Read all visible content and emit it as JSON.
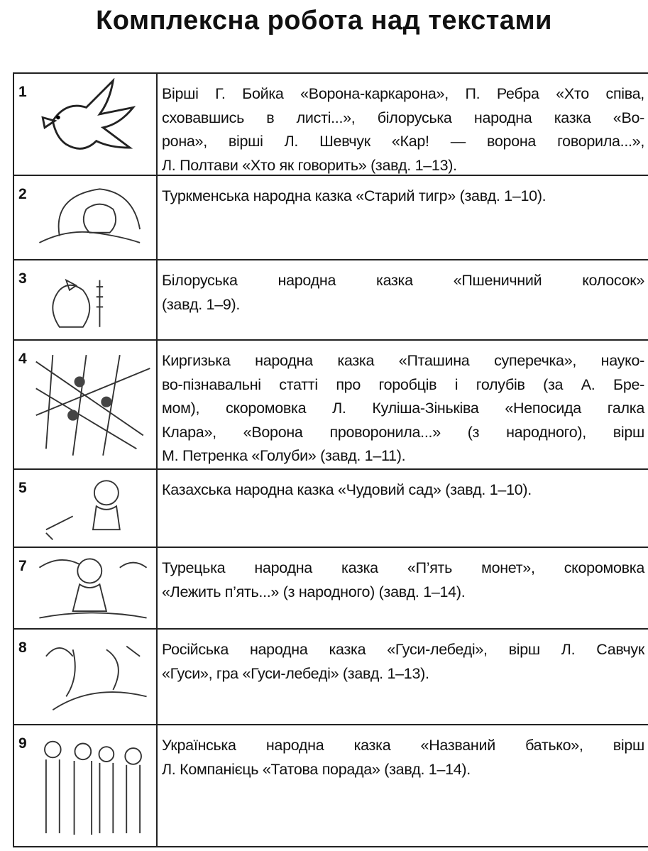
{
  "title": "Комплексна робота над текстами",
  "rows": [
    {
      "num": "1",
      "icon": "crow-illustration",
      "lines": [
        "Вірші Г. Бойка «Ворона-каркарона», П. Ребра «Хто співа,",
        "сховавшись в листі...», білоруська народна казка «Во-",
        "рона», вірші Л. Шевчук «Кар! — ворона говорила...»,",
        "Л. Полтави «Хто як говорить» (завд. 1–13)."
      ]
    },
    {
      "num": "2",
      "icon": "tiger-illustration",
      "lines": [
        "Туркменська народна казка «Старий тигр» (завд. 1–10)."
      ]
    },
    {
      "num": "3",
      "icon": "hen-with-wheat-illustration",
      "lines": [
        "Білоруська народна казка «Пшеничний колосок»",
        "(завд. 1–9)."
      ]
    },
    {
      "num": "4",
      "icon": "birds-in-net-illustration",
      "lines": [
        "Киргизька народна казка «Пташина суперечка», науко-",
        "во-пізнавальні статті про горобців і голубів (за А. Бре-",
        "мом), скоромовка Л. Куліша-Зіньківа «Непосида галка",
        "Клара», «Ворона проворонила...» (з народного), вірш",
        "М. Петренка «Голуби» (завд. 1–11)."
      ]
    },
    {
      "num": "5",
      "icon": "girl-watering-illustration",
      "lines": [
        "Казахська народна казка «Чудовий сад» (завд. 1–10)."
      ]
    },
    {
      "num": "7",
      "icon": "boy-picking-coins-illustration",
      "lines": [
        "Турецька народна казка «П’ять монет», скоромовка",
        "«Лежить п’ять...» (з народного) (завд. 1–14)."
      ]
    },
    {
      "num": "8",
      "icon": "geese-illustration",
      "lines": [
        "Російська народна казка «Гуси-лебеді», вірш Л. Савчук",
        "«Гуси», гра «Гуси-лебеді» (завд. 1–13)."
      ]
    },
    {
      "num": "9",
      "icon": "family-illustration",
      "lines": [
        "Українська народна казка «Названий батько», вірш",
        "Л. Компанієць «Татова порада» (завд. 1–14)."
      ]
    }
  ]
}
